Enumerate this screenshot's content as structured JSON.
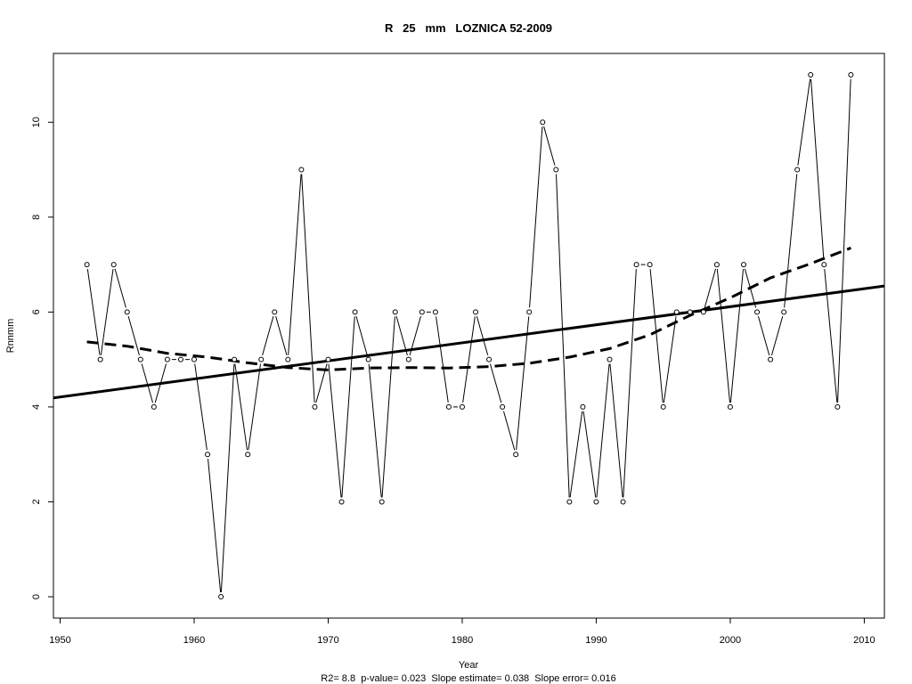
{
  "chart_data": {
    "type": "line",
    "title": "R   25   mm   LOZNICA 52-2009",
    "xlabel": "Year",
    "ylabel": "Rnnmm",
    "subtitle": "R2= 8.8  p-value= 0.023  Slope estimate= 0.038  Slope error= 0.016",
    "xlim": [
      1949.5,
      2011.5
    ],
    "ylim": [
      -0.45,
      11.45
    ],
    "x_ticks": [
      1950,
      1960,
      1970,
      1980,
      1990,
      2000,
      2010
    ],
    "y_ticks": [
      0,
      2,
      4,
      6,
      8,
      10
    ],
    "x": [
      1952,
      1953,
      1954,
      1955,
      1956,
      1957,
      1958,
      1959,
      1960,
      1961,
      1962,
      1963,
      1964,
      1965,
      1966,
      1967,
      1968,
      1969,
      1970,
      1971,
      1972,
      1973,
      1974,
      1975,
      1976,
      1977,
      1978,
      1979,
      1980,
      1981,
      1982,
      1983,
      1984,
      1985,
      1986,
      1987,
      1988,
      1989,
      1990,
      1991,
      1992,
      1993,
      1994,
      1995,
      1996,
      1997,
      1998,
      1999,
      2000,
      2001,
      2002,
      2003,
      2004,
      2005,
      2006,
      2007,
      2008,
      2009
    ],
    "series": [
      {
        "values": [
          7,
          5,
          7,
          6,
          5,
          4,
          5,
          5,
          5,
          3,
          0,
          5,
          3,
          5,
          6,
          5,
          9,
          4,
          5,
          2,
          6,
          5,
          2,
          6,
          5,
          6,
          6,
          4,
          4,
          6,
          5,
          4,
          3,
          6,
          10,
          9,
          2,
          4,
          2,
          5,
          2,
          7,
          7,
          4,
          6,
          6,
          6,
          7,
          4,
          7,
          6,
          5,
          6,
          9,
          11,
          7,
          4,
          11
        ],
        "style": "thin line with open circle markers"
      },
      {
        "style": "thick solid linear trend",
        "x": [
          1949.5,
          2011.5
        ],
        "values": [
          4.19,
          6.55
        ]
      },
      {
        "style": "thick dashed smoothed trend",
        "x": [
          1952,
          1955,
          1958,
          1961,
          1964,
          1967,
          1970,
          1973,
          1976,
          1979,
          1982,
          1985,
          1988,
          1991,
          1994,
          1997,
          2000,
          2003,
          2006,
          2009
        ],
        "values": [
          5.37,
          5.28,
          5.13,
          5.05,
          4.93,
          4.83,
          4.78,
          4.82,
          4.83,
          4.82,
          4.85,
          4.92,
          5.05,
          5.23,
          5.52,
          5.93,
          6.3,
          6.72,
          7.02,
          7.35
        ]
      }
    ],
    "grid": false,
    "legend": "none"
  }
}
